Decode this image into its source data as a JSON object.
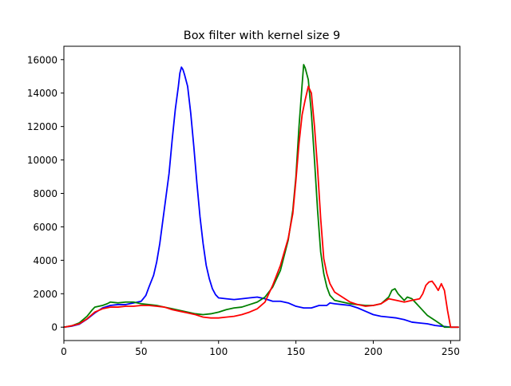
{
  "chart_data": {
    "type": "line",
    "title": "Box filter with kernel size 9",
    "xlabel": "",
    "ylabel": "",
    "xlim": [
      0,
      256
    ],
    "ylim": [
      -800,
      16800
    ],
    "x_ticks": [
      0,
      50,
      100,
      150,
      200,
      250
    ],
    "y_ticks": [
      0,
      2000,
      4000,
      6000,
      8000,
      10000,
      12000,
      14000,
      16000
    ],
    "grid": false,
    "legend": "none",
    "series": [
      {
        "color": "#0000ff",
        "points": [
          [
            0,
            0
          ],
          [
            5,
            60
          ],
          [
            10,
            180
          ],
          [
            15,
            480
          ],
          [
            20,
            850
          ],
          [
            25,
            1150
          ],
          [
            30,
            1300
          ],
          [
            35,
            1350
          ],
          [
            40,
            1350
          ],
          [
            45,
            1450
          ],
          [
            50,
            1550
          ],
          [
            53,
            1900
          ],
          [
            55,
            2400
          ],
          [
            58,
            3100
          ],
          [
            60,
            3900
          ],
          [
            62,
            5000
          ],
          [
            64,
            6400
          ],
          [
            66,
            7800
          ],
          [
            68,
            9200
          ],
          [
            70,
            11200
          ],
          [
            72,
            13000
          ],
          [
            74,
            14400
          ],
          [
            75,
            15200
          ],
          [
            76,
            15550
          ],
          [
            77,
            15400
          ],
          [
            78,
            15100
          ],
          [
            80,
            14400
          ],
          [
            82,
            12800
          ],
          [
            84,
            10800
          ],
          [
            86,
            8600
          ],
          [
            88,
            6600
          ],
          [
            90,
            5000
          ],
          [
            92,
            3700
          ],
          [
            94,
            2900
          ],
          [
            96,
            2300
          ],
          [
            98,
            1950
          ],
          [
            100,
            1750
          ],
          [
            105,
            1700
          ],
          [
            110,
            1650
          ],
          [
            115,
            1700
          ],
          [
            120,
            1750
          ],
          [
            125,
            1800
          ],
          [
            130,
            1700
          ],
          [
            135,
            1550
          ],
          [
            140,
            1550
          ],
          [
            145,
            1450
          ],
          [
            150,
            1250
          ],
          [
            155,
            1150
          ],
          [
            160,
            1150
          ],
          [
            165,
            1300
          ],
          [
            170,
            1300
          ],
          [
            172,
            1450
          ],
          [
            175,
            1400
          ],
          [
            180,
            1350
          ],
          [
            185,
            1300
          ],
          [
            190,
            1150
          ],
          [
            195,
            950
          ],
          [
            200,
            750
          ],
          [
            205,
            650
          ],
          [
            210,
            600
          ],
          [
            215,
            550
          ],
          [
            220,
            450
          ],
          [
            225,
            300
          ],
          [
            230,
            250
          ],
          [
            235,
            200
          ],
          [
            240,
            100
          ],
          [
            245,
            50
          ],
          [
            250,
            0
          ],
          [
            255,
            0
          ]
        ]
      },
      {
        "color": "#008000",
        "points": [
          [
            0,
            0
          ],
          [
            5,
            80
          ],
          [
            10,
            260
          ],
          [
            15,
            650
          ],
          [
            18,
            1000
          ],
          [
            20,
            1200
          ],
          [
            25,
            1300
          ],
          [
            28,
            1400
          ],
          [
            30,
            1500
          ],
          [
            35,
            1450
          ],
          [
            40,
            1500
          ],
          [
            45,
            1500
          ],
          [
            50,
            1400
          ],
          [
            55,
            1350
          ],
          [
            60,
            1300
          ],
          [
            65,
            1200
          ],
          [
            70,
            1100
          ],
          [
            75,
            1000
          ],
          [
            80,
            900
          ],
          [
            85,
            800
          ],
          [
            90,
            750
          ],
          [
            95,
            800
          ],
          [
            100,
            900
          ],
          [
            105,
            1050
          ],
          [
            110,
            1150
          ],
          [
            115,
            1200
          ],
          [
            120,
            1350
          ],
          [
            125,
            1500
          ],
          [
            130,
            1800
          ],
          [
            135,
            2400
          ],
          [
            140,
            3400
          ],
          [
            145,
            5200
          ],
          [
            148,
            7000
          ],
          [
            150,
            9000
          ],
          [
            152,
            12000
          ],
          [
            154,
            14500
          ],
          [
            155,
            15700
          ],
          [
            156,
            15500
          ],
          [
            158,
            14800
          ],
          [
            160,
            12800
          ],
          [
            162,
            10000
          ],
          [
            164,
            7000
          ],
          [
            166,
            4500
          ],
          [
            168,
            3200
          ],
          [
            170,
            2400
          ],
          [
            172,
            1900
          ],
          [
            175,
            1600
          ],
          [
            180,
            1500
          ],
          [
            185,
            1400
          ],
          [
            190,
            1350
          ],
          [
            195,
            1300
          ],
          [
            200,
            1300
          ],
          [
            205,
            1400
          ],
          [
            210,
            1800
          ],
          [
            212,
            2200
          ],
          [
            214,
            2300
          ],
          [
            216,
            2000
          ],
          [
            218,
            1800
          ],
          [
            220,
            1600
          ],
          [
            222,
            1800
          ],
          [
            225,
            1700
          ],
          [
            228,
            1400
          ],
          [
            230,
            1200
          ],
          [
            235,
            700
          ],
          [
            240,
            400
          ],
          [
            244,
            150
          ],
          [
            246,
            0
          ],
          [
            250,
            0
          ],
          [
            255,
            0
          ]
        ]
      },
      {
        "color": "#ff0000",
        "points": [
          [
            0,
            0
          ],
          [
            5,
            80
          ],
          [
            10,
            200
          ],
          [
            15,
            500
          ],
          [
            20,
            900
          ],
          [
            25,
            1100
          ],
          [
            30,
            1200
          ],
          [
            35,
            1200
          ],
          [
            40,
            1250
          ],
          [
            45,
            1250
          ],
          [
            50,
            1300
          ],
          [
            55,
            1300
          ],
          [
            60,
            1250
          ],
          [
            65,
            1200
          ],
          [
            70,
            1050
          ],
          [
            75,
            950
          ],
          [
            80,
            850
          ],
          [
            85,
            750
          ],
          [
            90,
            600
          ],
          [
            95,
            550
          ],
          [
            100,
            550
          ],
          [
            105,
            600
          ],
          [
            110,
            650
          ],
          [
            115,
            750
          ],
          [
            120,
            900
          ],
          [
            125,
            1100
          ],
          [
            130,
            1500
          ],
          [
            135,
            2500
          ],
          [
            140,
            3700
          ],
          [
            145,
            5300
          ],
          [
            148,
            6800
          ],
          [
            150,
            8800
          ],
          [
            152,
            11000
          ],
          [
            154,
            12700
          ],
          [
            156,
            13600
          ],
          [
            158,
            14400
          ],
          [
            160,
            14000
          ],
          [
            162,
            12000
          ],
          [
            164,
            9500
          ],
          [
            166,
            6500
          ],
          [
            168,
            4100
          ],
          [
            170,
            3200
          ],
          [
            172,
            2600
          ],
          [
            175,
            2100
          ],
          [
            180,
            1800
          ],
          [
            185,
            1500
          ],
          [
            190,
            1350
          ],
          [
            195,
            1250
          ],
          [
            200,
            1300
          ],
          [
            205,
            1400
          ],
          [
            210,
            1700
          ],
          [
            215,
            1600
          ],
          [
            220,
            1500
          ],
          [
            225,
            1600
          ],
          [
            230,
            1700
          ],
          [
            232,
            2000
          ],
          [
            234,
            2500
          ],
          [
            236,
            2700
          ],
          [
            238,
            2750
          ],
          [
            240,
            2500
          ],
          [
            242,
            2200
          ],
          [
            244,
            2600
          ],
          [
            246,
            2200
          ],
          [
            248,
            1000
          ],
          [
            250,
            0
          ],
          [
            255,
            0
          ]
        ]
      }
    ]
  }
}
